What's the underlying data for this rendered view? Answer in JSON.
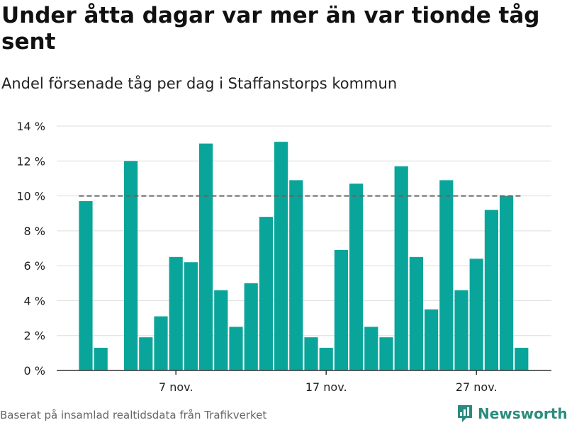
{
  "header": {
    "title": "Under åtta dagar var mer än var tionde tåg sent",
    "subtitle": "Andel försenade tåg per dag i Staffanstorps kommun"
  },
  "footer": {
    "source": "Baserat på insamlad realtidsdata från Trafikverket",
    "brand": "Newsworthy"
  },
  "chart_data": {
    "type": "bar",
    "title": "Under åtta dagar var mer än var tionde tåg sent",
    "subtitle": "Andel försenade tåg per dag i Staffanstorps kommun",
    "xlabel": "",
    "ylabel": "",
    "x_type": "date",
    "x": [
      "2023-11-01",
      "2023-11-02",
      "2023-11-03",
      "2023-11-04",
      "2023-11-05",
      "2023-11-06",
      "2023-11-07",
      "2023-11-08",
      "2023-11-09",
      "2023-11-10",
      "2023-11-11",
      "2023-11-12",
      "2023-11-13",
      "2023-11-14",
      "2023-11-15",
      "2023-11-16",
      "2023-11-17",
      "2023-11-18",
      "2023-11-19",
      "2023-11-20",
      "2023-11-21",
      "2023-11-22",
      "2023-11-23",
      "2023-11-24",
      "2023-11-25",
      "2023-11-26",
      "2023-11-27",
      "2023-11-28",
      "2023-11-29",
      "2023-11-30"
    ],
    "values": [
      9.7,
      1.3,
      null,
      12.0,
      1.9,
      3.1,
      6.5,
      6.2,
      13.0,
      4.6,
      2.5,
      5.0,
      8.8,
      13.1,
      10.9,
      1.9,
      1.3,
      6.9,
      10.7,
      2.5,
      1.9,
      11.7,
      6.5,
      3.5,
      10.9,
      4.6,
      6.4,
      9.2,
      10.0,
      1.3
    ],
    "ylim": [
      0,
      14
    ],
    "y_ticks": [
      0,
      2,
      4,
      6,
      8,
      10,
      12,
      14
    ],
    "y_tick_labels": [
      "0 %",
      "2 %",
      "4 %",
      "6 %",
      "8 %",
      "10 %",
      "12 %",
      "14 %"
    ],
    "x_tick_dates": [
      "2023-11-07",
      "2023-11-17",
      "2023-11-27"
    ],
    "x_tick_labels": [
      "7 nov.",
      "17 nov.",
      "27 nov."
    ],
    "reference_line": {
      "value": 10,
      "style": "dashed",
      "color": "#666666"
    },
    "bar_color": "#0aa59a",
    "grid": "horizontal",
    "legend": "none"
  }
}
